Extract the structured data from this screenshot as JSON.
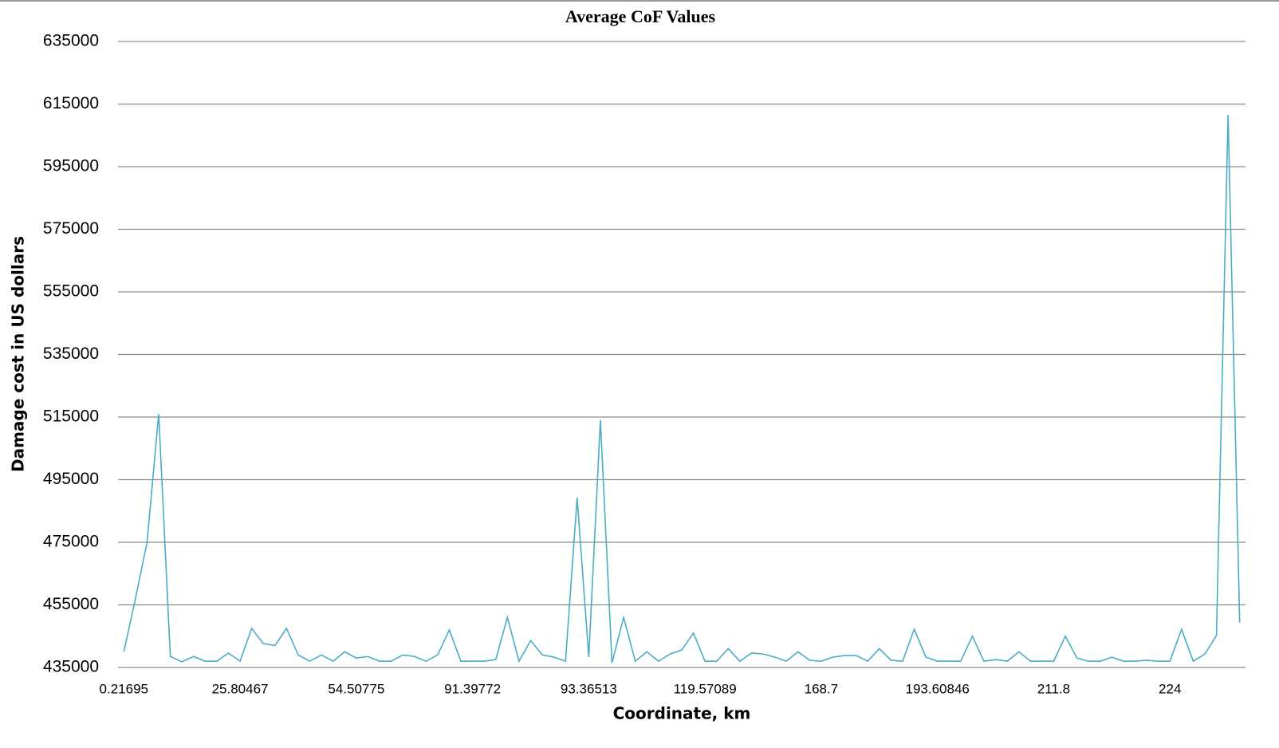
{
  "chart_data": {
    "type": "line",
    "title": "Average CoF Values",
    "x_label": "Coordinate, km",
    "y_label": "Damage cost in US dollars",
    "categories": [
      "0.21695",
      null,
      null,
      null,
      null,
      null,
      null,
      null,
      null,
      null,
      "25.80467",
      null,
      null,
      null,
      null,
      null,
      null,
      null,
      null,
      null,
      "54.50775",
      null,
      null,
      null,
      null,
      null,
      null,
      null,
      null,
      null,
      "91.39772",
      null,
      null,
      null,
      null,
      null,
      null,
      null,
      null,
      null,
      "93.36513",
      null,
      null,
      null,
      null,
      null,
      null,
      null,
      null,
      null,
      "119.57089",
      null,
      null,
      null,
      null,
      null,
      null,
      null,
      null,
      null,
      "168.7",
      null,
      null,
      null,
      null,
      null,
      null,
      null,
      null,
      null,
      "193.60846",
      null,
      null,
      null,
      null,
      null,
      null,
      null,
      null,
      null,
      "211.8",
      null,
      null,
      null,
      null,
      null,
      null,
      null,
      null,
      null,
      "224",
      null,
      null,
      null,
      null,
      null,
      null
    ],
    "values": [
      440000,
      457000,
      475000,
      516000,
      438500,
      436800,
      438500,
      437000,
      437000,
      439600,
      437000,
      447500,
      442600,
      442000,
      447500,
      439000,
      437000,
      439000,
      437000,
      440000,
      438000,
      438500,
      437000,
      437000,
      439000,
      438500,
      437000,
      439000,
      447000,
      437000,
      437000,
      437000,
      437500,
      451000,
      437000,
      443600,
      439000,
      438300,
      437000,
      489300,
      438300,
      514000,
      436500,
      451000,
      437000,
      440000,
      437000,
      439300,
      440600,
      446000,
      437000,
      437000,
      441000,
      437000,
      439600,
      439300,
      438300,
      437000,
      440000,
      437300,
      437000,
      438300,
      438800,
      438800,
      437000,
      441000,
      437300,
      437000,
      447200,
      438300,
      437000,
      437000,
      437000,
      445000,
      437000,
      437500,
      437000,
      440000,
      437000,
      437000,
      437000,
      445000,
      438000,
      437000,
      437000,
      438300,
      437000,
      437000,
      437300,
      437000,
      437000,
      447200,
      437000,
      439300,
      445200,
      611600,
      449300
    ],
    "color": "#4bacc6",
    "ylim": [
      435000,
      635000
    ],
    "yticks": [
      435000,
      455000,
      475000,
      495000,
      515000,
      535000,
      555000,
      575000,
      595000,
      615000,
      635000
    ],
    "grid": true
  }
}
